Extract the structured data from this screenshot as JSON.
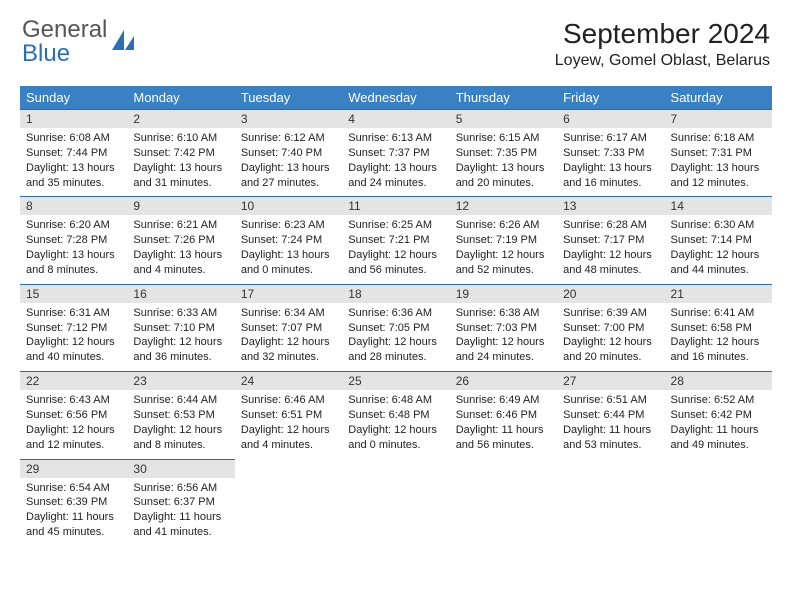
{
  "logo": {
    "text_general": "General",
    "text_blue": "Blue"
  },
  "header": {
    "month_title": "September 2024",
    "location": "Loyew, Gomel Oblast, Belarus"
  },
  "colors": {
    "header_bg": "#3a81c4",
    "header_text": "#ffffff",
    "daynum_bg": "#e4e4e4",
    "row_divider": "#2d6aa3",
    "logo_gray": "#555555",
    "logo_blue": "#2a6fb5",
    "body_text": "#222222"
  },
  "weekdays": [
    "Sunday",
    "Monday",
    "Tuesday",
    "Wednesday",
    "Thursday",
    "Friday",
    "Saturday"
  ],
  "days": [
    {
      "n": 1,
      "sunrise": "6:08 AM",
      "sunset": "7:44 PM",
      "daylight": "13 hours and 35 minutes."
    },
    {
      "n": 2,
      "sunrise": "6:10 AM",
      "sunset": "7:42 PM",
      "daylight": "13 hours and 31 minutes."
    },
    {
      "n": 3,
      "sunrise": "6:12 AM",
      "sunset": "7:40 PM",
      "daylight": "13 hours and 27 minutes."
    },
    {
      "n": 4,
      "sunrise": "6:13 AM",
      "sunset": "7:37 PM",
      "daylight": "13 hours and 24 minutes."
    },
    {
      "n": 5,
      "sunrise": "6:15 AM",
      "sunset": "7:35 PM",
      "daylight": "13 hours and 20 minutes."
    },
    {
      "n": 6,
      "sunrise": "6:17 AM",
      "sunset": "7:33 PM",
      "daylight": "13 hours and 16 minutes."
    },
    {
      "n": 7,
      "sunrise": "6:18 AM",
      "sunset": "7:31 PM",
      "daylight": "13 hours and 12 minutes."
    },
    {
      "n": 8,
      "sunrise": "6:20 AM",
      "sunset": "7:28 PM",
      "daylight": "13 hours and 8 minutes."
    },
    {
      "n": 9,
      "sunrise": "6:21 AM",
      "sunset": "7:26 PM",
      "daylight": "13 hours and 4 minutes."
    },
    {
      "n": 10,
      "sunrise": "6:23 AM",
      "sunset": "7:24 PM",
      "daylight": "13 hours and 0 minutes."
    },
    {
      "n": 11,
      "sunrise": "6:25 AM",
      "sunset": "7:21 PM",
      "daylight": "12 hours and 56 minutes."
    },
    {
      "n": 12,
      "sunrise": "6:26 AM",
      "sunset": "7:19 PM",
      "daylight": "12 hours and 52 minutes."
    },
    {
      "n": 13,
      "sunrise": "6:28 AM",
      "sunset": "7:17 PM",
      "daylight": "12 hours and 48 minutes."
    },
    {
      "n": 14,
      "sunrise": "6:30 AM",
      "sunset": "7:14 PM",
      "daylight": "12 hours and 44 minutes."
    },
    {
      "n": 15,
      "sunrise": "6:31 AM",
      "sunset": "7:12 PM",
      "daylight": "12 hours and 40 minutes."
    },
    {
      "n": 16,
      "sunrise": "6:33 AM",
      "sunset": "7:10 PM",
      "daylight": "12 hours and 36 minutes."
    },
    {
      "n": 17,
      "sunrise": "6:34 AM",
      "sunset": "7:07 PM",
      "daylight": "12 hours and 32 minutes."
    },
    {
      "n": 18,
      "sunrise": "6:36 AM",
      "sunset": "7:05 PM",
      "daylight": "12 hours and 28 minutes."
    },
    {
      "n": 19,
      "sunrise": "6:38 AM",
      "sunset": "7:03 PM",
      "daylight": "12 hours and 24 minutes."
    },
    {
      "n": 20,
      "sunrise": "6:39 AM",
      "sunset": "7:00 PM",
      "daylight": "12 hours and 20 minutes."
    },
    {
      "n": 21,
      "sunrise": "6:41 AM",
      "sunset": "6:58 PM",
      "daylight": "12 hours and 16 minutes."
    },
    {
      "n": 22,
      "sunrise": "6:43 AM",
      "sunset": "6:56 PM",
      "daylight": "12 hours and 12 minutes."
    },
    {
      "n": 23,
      "sunrise": "6:44 AM",
      "sunset": "6:53 PM",
      "daylight": "12 hours and 8 minutes."
    },
    {
      "n": 24,
      "sunrise": "6:46 AM",
      "sunset": "6:51 PM",
      "daylight": "12 hours and 4 minutes."
    },
    {
      "n": 25,
      "sunrise": "6:48 AM",
      "sunset": "6:48 PM",
      "daylight": "12 hours and 0 minutes."
    },
    {
      "n": 26,
      "sunrise": "6:49 AM",
      "sunset": "6:46 PM",
      "daylight": "11 hours and 56 minutes."
    },
    {
      "n": 27,
      "sunrise": "6:51 AM",
      "sunset": "6:44 PM",
      "daylight": "11 hours and 53 minutes."
    },
    {
      "n": 28,
      "sunrise": "6:52 AM",
      "sunset": "6:42 PM",
      "daylight": "11 hours and 49 minutes."
    },
    {
      "n": 29,
      "sunrise": "6:54 AM",
      "sunset": "6:39 PM",
      "daylight": "11 hours and 45 minutes."
    },
    {
      "n": 30,
      "sunrise": "6:56 AM",
      "sunset": "6:37 PM",
      "daylight": "11 hours and 41 minutes."
    }
  ],
  "labels": {
    "sunrise": "Sunrise:",
    "sunset": "Sunset:",
    "daylight": "Daylight:"
  },
  "layout": {
    "start_weekday": 0,
    "total_days": 30,
    "cols": 7
  }
}
